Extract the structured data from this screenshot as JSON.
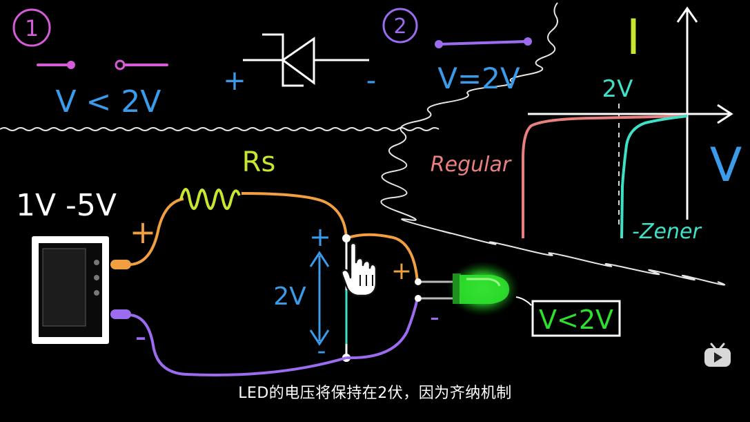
{
  "colors": {
    "background": "#000000",
    "magenta": "#d65bd6",
    "blue": "#3a9bea",
    "purple": "#9b6cf0",
    "orange": "#f0a040",
    "yellow_green": "#c8e630",
    "teal": "#3fe0c8",
    "pink": "#e88080",
    "white": "#ffffff",
    "led_green": "#2ee02e"
  },
  "scenario_1": {
    "number": "1",
    "condition": "V < 2V"
  },
  "diode_symbol": {
    "plus": "+",
    "minus": "-"
  },
  "scenario_2": {
    "number": "2",
    "condition": "V=2V"
  },
  "graph": {
    "y_axis_label": "I",
    "x_axis_label": "V",
    "breakdown_label": "2V",
    "curve_regular_label": "Regular",
    "curve_zener_label": "-Zener"
  },
  "circuit": {
    "source_label": "1V -5V",
    "resistor_label": "Rs",
    "source_plus": "+",
    "source_minus": "-",
    "zener_plus": "+",
    "zener_minus": "-",
    "zener_voltage": "2V",
    "led_plus": "+",
    "led_minus": "-",
    "led_condition": "V<2V"
  },
  "subtitle": "LED的电压将保持在2伏，因为齐纳机制",
  "icons": {
    "cursor": "hand-pointer-icon",
    "logo": "bilibili-tv-icon"
  }
}
